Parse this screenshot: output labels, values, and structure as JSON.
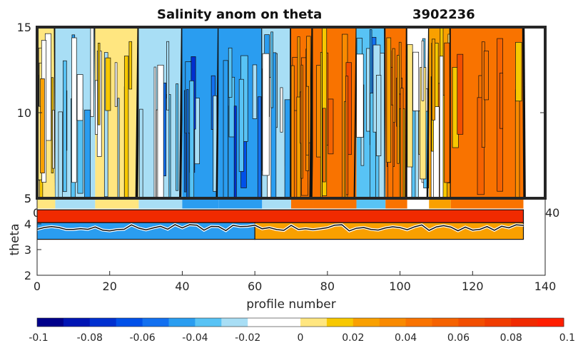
{
  "chart_data": [
    {
      "type": "heatmap",
      "title": "Salinity anom on theta",
      "float_id": "3902236",
      "xlabel": "",
      "ylabel": "",
      "xlim": [
        0,
        140
      ],
      "ylim": [
        5,
        15
      ],
      "y_ticks": [
        15,
        10,
        5
      ],
      "x_ticks_visible": [
        "0",
        "40"
      ],
      "value_range": [
        -0.1,
        0.1
      ],
      "column_anomalies": [
        {
          "x": [
            0,
            5
          ],
          "value": 0.01
        },
        {
          "x": [
            5,
            16
          ],
          "value": -0.03
        },
        {
          "x": [
            16,
            28
          ],
          "value": 0.0
        },
        {
          "x": [
            28,
            40
          ],
          "value": -0.03
        },
        {
          "x": [
            40,
            50
          ],
          "value": -0.05
        },
        {
          "x": [
            50,
            62
          ],
          "value": -0.05
        },
        {
          "x": [
            62,
            70
          ],
          "value": -0.02
        },
        {
          "x": [
            70,
            76
          ],
          "value": 0.04
        },
        {
          "x": [
            76,
            88
          ],
          "value": 0.04
        },
        {
          "x": [
            88,
            96
          ],
          "value": -0.04
        },
        {
          "x": [
            96,
            102
          ],
          "value": 0.04
        },
        {
          "x": [
            102,
            108
          ],
          "value": -0.01
        },
        {
          "x": [
            108,
            114
          ],
          "value": 0.02
        },
        {
          "x": [
            114,
            134
          ],
          "value": 0.04
        }
      ]
    },
    {
      "type": "heatmap",
      "title": "",
      "xlabel": "profile number",
      "ylabel": "theta",
      "xlim": [
        0,
        140
      ],
      "ylim": [
        2,
        5
      ],
      "x_ticks": [
        0,
        20,
        40,
        60,
        80,
        100,
        120,
        140
      ],
      "y_ticks": [
        2,
        3,
        4,
        5
      ],
      "value_range": [
        -0.1,
        0.1
      ],
      "band_anomalies": [
        {
          "theta": [
            4.05,
            4.55
          ],
          "value": 0.08
        },
        {
          "theta": [
            3.4,
            4.05
          ],
          "value": -0.05,
          "x": [
            0,
            60
          ]
        },
        {
          "theta": [
            3.4,
            4.05
          ],
          "value": 0.02,
          "x": [
            60,
            134
          ]
        }
      ]
    }
  ],
  "colorbar": {
    "tick_labels": [
      "-0.1",
      "-0.08",
      "-0.06",
      "-0.04",
      "-0.02",
      "0",
      "0.02",
      "0.04",
      "0.06",
      "0.08",
      "0.1"
    ],
    "colors": [
      "#00008b",
      "#0015b4",
      "#0030d0",
      "#0050e8",
      "#1270f0",
      "#2a9df0",
      "#58c3f5",
      "#a8def5",
      "#ffffff",
      "#ffffff",
      "#ffe680",
      "#f7c800",
      "#f9a000",
      "#f98a00",
      "#f97300",
      "#f56200",
      "#f24e00",
      "#f03c00",
      "#f02a00",
      "#ff1e00"
    ]
  }
}
